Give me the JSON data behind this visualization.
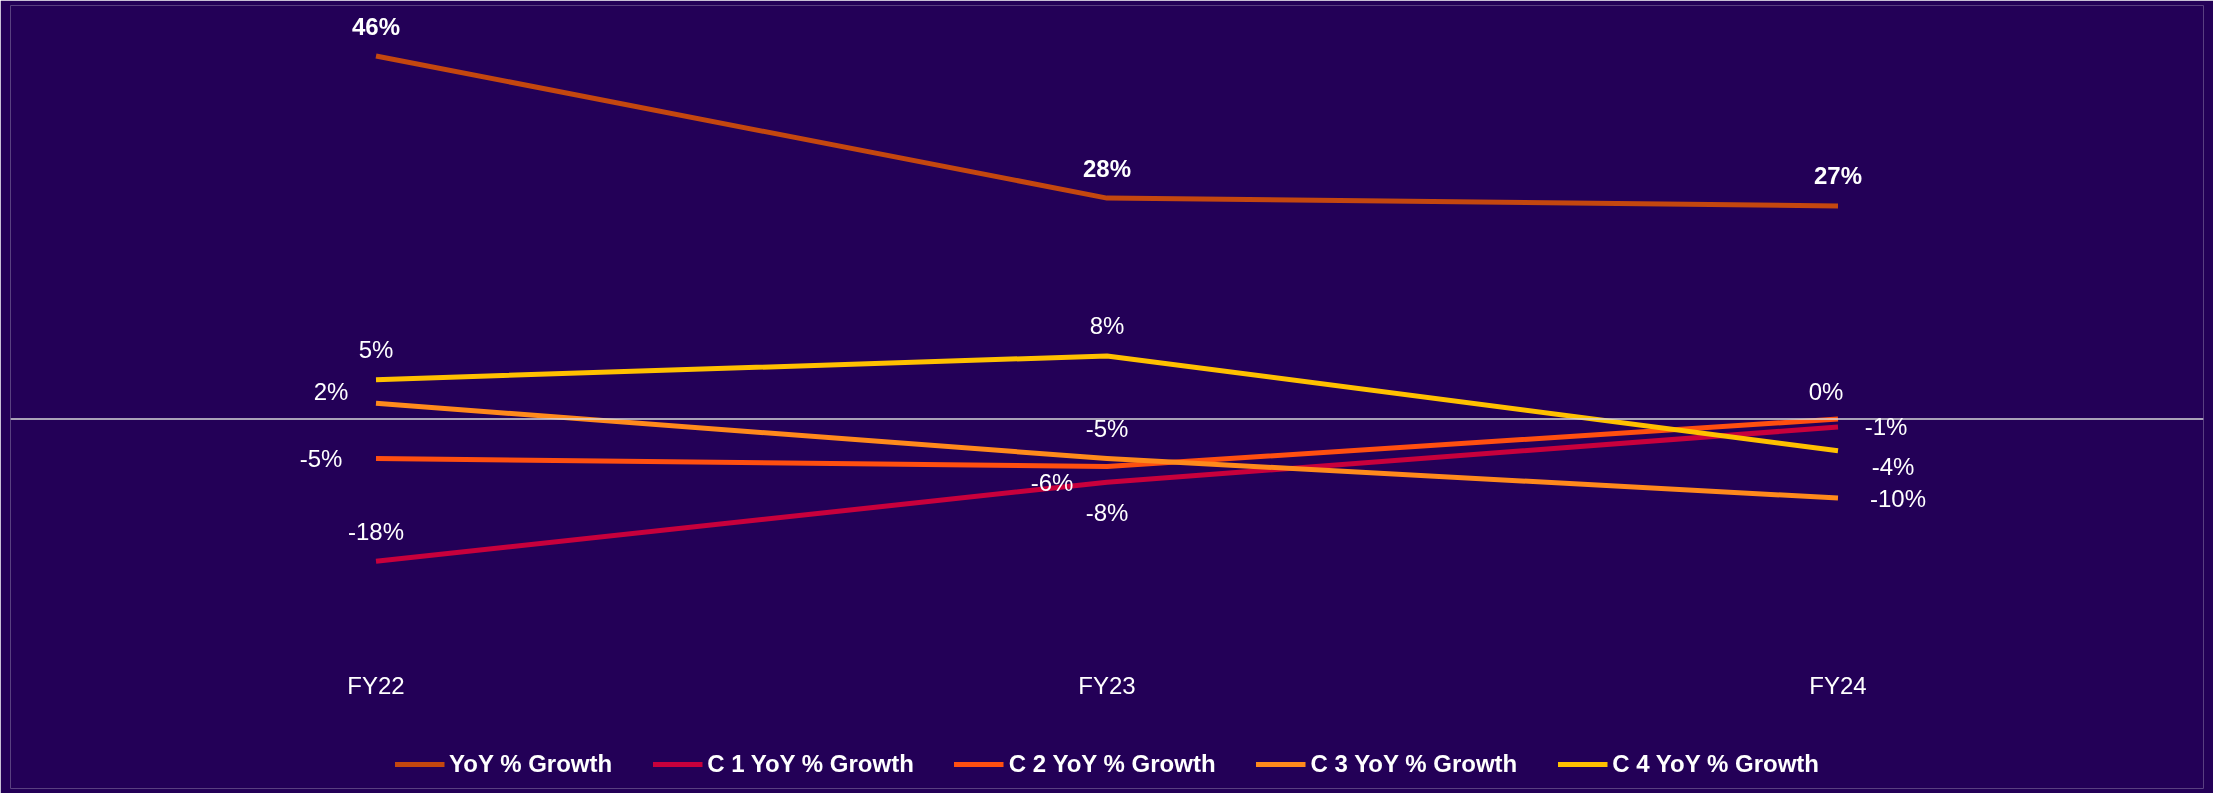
{
  "chart_data": {
    "type": "line",
    "categories": [
      "FY22",
      "FY23",
      "FY24"
    ],
    "series": [
      {
        "name": "YoY % Growth",
        "color": "#c4470f",
        "values": [
          46,
          28,
          27
        ],
        "value_labels": [
          "46%",
          "28%",
          "27%"
        ]
      },
      {
        "name": "C 1 YoY % Growth",
        "color": "#c8003c",
        "values": [
          -18,
          -8,
          -1
        ],
        "value_labels": [
          "-18%",
          "-8%",
          "-1%"
        ]
      },
      {
        "name": "C 2 YoY % Growth",
        "color": "#ff4f10",
        "values": [
          -5,
          -6,
          0
        ],
        "value_labels": [
          "-5%",
          "-6%",
          "0%"
        ]
      },
      {
        "name": "C 3 YoY % Growth",
        "color": "#ff8a1c",
        "values": [
          2,
          -5,
          -10
        ],
        "value_labels": [
          "2%",
          "-5%",
          "-10%"
        ]
      },
      {
        "name": "C 4 YoY % Growth",
        "color": "#ffc000",
        "values": [
          5,
          8,
          -4
        ],
        "value_labels": [
          "5%",
          "8%",
          "-4%"
        ]
      }
    ],
    "legend": "bottom",
    "grid": false,
    "marker": "none",
    "line_style": "solid"
  }
}
